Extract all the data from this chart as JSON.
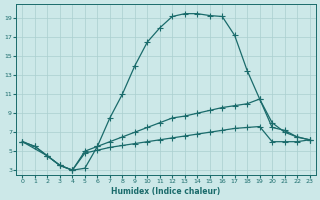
{
  "xlabel": "Humidex (Indice chaleur)",
  "xlim": [
    -0.5,
    23.5
  ],
  "ylim": [
    2.5,
    20.5
  ],
  "xticks": [
    0,
    1,
    2,
    3,
    4,
    5,
    6,
    7,
    8,
    9,
    10,
    11,
    12,
    13,
    14,
    15,
    16,
    17,
    18,
    19,
    20,
    21,
    22,
    23
  ],
  "yticks": [
    3,
    5,
    7,
    9,
    11,
    13,
    15,
    17,
    19
  ],
  "bg_color": "#cce8e8",
  "line_color": "#1a6b6b",
  "grid_color": "#aacfcf",
  "curve1_x": [
    0,
    1,
    2,
    3,
    4,
    5,
    6,
    7,
    8,
    9,
    10,
    11,
    12,
    13,
    14,
    15,
    16,
    17,
    18,
    19,
    20,
    21,
    22,
    23
  ],
  "curve1_y": [
    6.0,
    5.5,
    4.5,
    3.5,
    3.0,
    3.2,
    5.5,
    8.5,
    11.0,
    14.0,
    16.5,
    18.0,
    19.2,
    19.5,
    19.5,
    19.3,
    19.2,
    17.2,
    13.5,
    10.5,
    7.5,
    7.2,
    6.5,
    6.2
  ],
  "curve2_x": [
    0,
    1,
    2,
    3,
    4,
    5,
    6,
    7,
    8,
    9,
    10,
    11,
    12,
    13,
    14,
    15,
    16,
    17,
    18,
    19,
    20,
    21,
    22,
    23
  ],
  "curve2_y": [
    6.0,
    5.5,
    4.5,
    3.5,
    3.0,
    5.0,
    5.5,
    6.0,
    6.5,
    7.0,
    7.5,
    8.0,
    8.5,
    8.7,
    9.0,
    9.3,
    9.6,
    9.8,
    10.0,
    10.5,
    8.0,
    7.0,
    6.5,
    6.2
  ],
  "curve3_x": [
    0,
    2,
    3,
    4,
    5,
    6,
    7,
    8,
    9,
    10,
    11,
    12,
    13,
    14,
    15,
    16,
    17,
    18,
    19,
    20,
    21,
    22,
    23
  ],
  "curve3_y": [
    6.0,
    4.5,
    3.5,
    3.0,
    4.8,
    5.1,
    5.4,
    5.6,
    5.8,
    6.0,
    6.2,
    6.4,
    6.6,
    6.8,
    7.0,
    7.2,
    7.4,
    7.5,
    7.6,
    6.0,
    6.0,
    6.0,
    6.2
  ]
}
